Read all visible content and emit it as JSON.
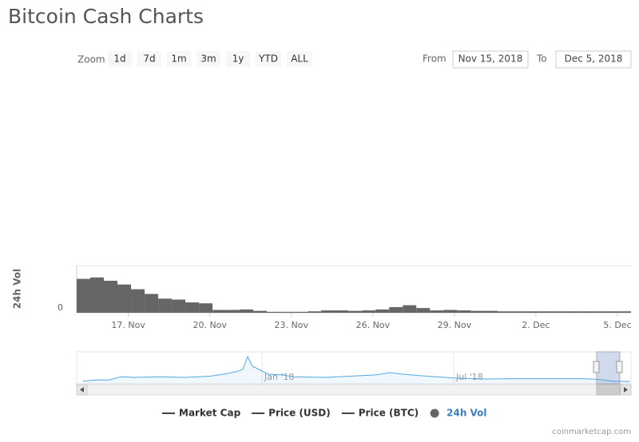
{
  "header": {
    "title": "Bitcoin Cash Charts"
  },
  "zoom": {
    "label": "Zoom",
    "buttons": [
      "1d",
      "7d",
      "1m",
      "3m",
      "1y",
      "YTD",
      "ALL"
    ]
  },
  "range": {
    "from_label": "From",
    "from": "Nov 15, 2018",
    "to_label": "To",
    "to": "Dec 5, 2018"
  },
  "chart_data": [
    {
      "type": "bar",
      "y_label": "24h Vol",
      "color": "#666666",
      "x": [
        15.1,
        15.6,
        16.1,
        16.6,
        17.1,
        17.6,
        18.1,
        18.6,
        19.1,
        19.6,
        20.1,
        20.6,
        21.1,
        21.6,
        22.1,
        22.6,
        23.1,
        23.6,
        24.1,
        24.6,
        25.1,
        25.6,
        26.1,
        26.6,
        27.1,
        27.6,
        28.1,
        28.6,
        29.1,
        29.6,
        30.1,
        30.6,
        31.1,
        31.6,
        32.1,
        32.6,
        33.1,
        33.6,
        34.1,
        34.6,
        35.1
      ],
      "values": [
        72,
        75,
        68,
        60,
        50,
        40,
        30,
        28,
        22,
        20,
        6,
        6,
        7,
        4,
        2,
        2,
        2,
        3,
        5,
        5,
        4,
        5,
        7,
        12,
        16,
        10,
        5,
        6,
        5,
        4,
        4,
        3,
        3,
        3,
        3,
        3,
        3,
        3,
        3,
        3,
        3
      ],
      "xlim": [
        15.1,
        35.5
      ],
      "xticks": [
        {
          "value": 17,
          "label": "17. Nov"
        },
        {
          "value": 20,
          "label": "20. Nov"
        },
        {
          "value": 23,
          "label": "23. Nov"
        },
        {
          "value": 26,
          "label": "26. Nov"
        },
        {
          "value": 29,
          "label": "29. Nov"
        },
        {
          "value": 32,
          "label": "2. Dec"
        },
        {
          "value": 35,
          "label": "5. Dec"
        }
      ],
      "ylim": [
        0,
        100
      ],
      "yticks": [
        0
      ]
    },
    {
      "type": "line",
      "color": "#4fa9e0",
      "x": [
        -5.6,
        -5.2,
        -4.8,
        -4.4,
        -4,
        -3.2,
        -2.4,
        -1.6,
        -1.2,
        -0.8,
        -0.6,
        -0.45,
        -0.3,
        -0.1,
        0.2,
        0.6,
        1,
        2,
        3,
        3.6,
        4,
        4.4,
        5,
        6,
        7,
        8,
        9,
        10,
        10.5,
        11,
        11.5
      ],
      "values": [
        8,
        12,
        12,
        22,
        20,
        22,
        20,
        24,
        30,
        38,
        45,
        85,
        55,
        45,
        30,
        28,
        22,
        20,
        25,
        28,
        35,
        30,
        25,
        18,
        15,
        16,
        16,
        16,
        14,
        8,
        7
      ],
      "xlim": [
        -5.8,
        11.55
      ],
      "xticks": [
        {
          "value": 0,
          "label": "Jan '18"
        },
        {
          "value": 6,
          "label": "Jul '18"
        }
      ],
      "ylim": [
        0,
        100
      ]
    }
  ],
  "legend": {
    "items": [
      {
        "name": "Market Cap",
        "color": "#444444",
        "text_color": "#333333",
        "marker": "line"
      },
      {
        "name": "Price (USD)",
        "color": "#444444",
        "text_color": "#333333",
        "marker": "line"
      },
      {
        "name": "Price (BTC)",
        "color": "#444444",
        "text_color": "#333333",
        "marker": "line"
      },
      {
        "name": "24h Vol",
        "color": "#666666",
        "text_color": "#3c7ebf",
        "marker": "circle"
      }
    ]
  },
  "footer": {
    "credit": "coinmarketcap.com"
  }
}
